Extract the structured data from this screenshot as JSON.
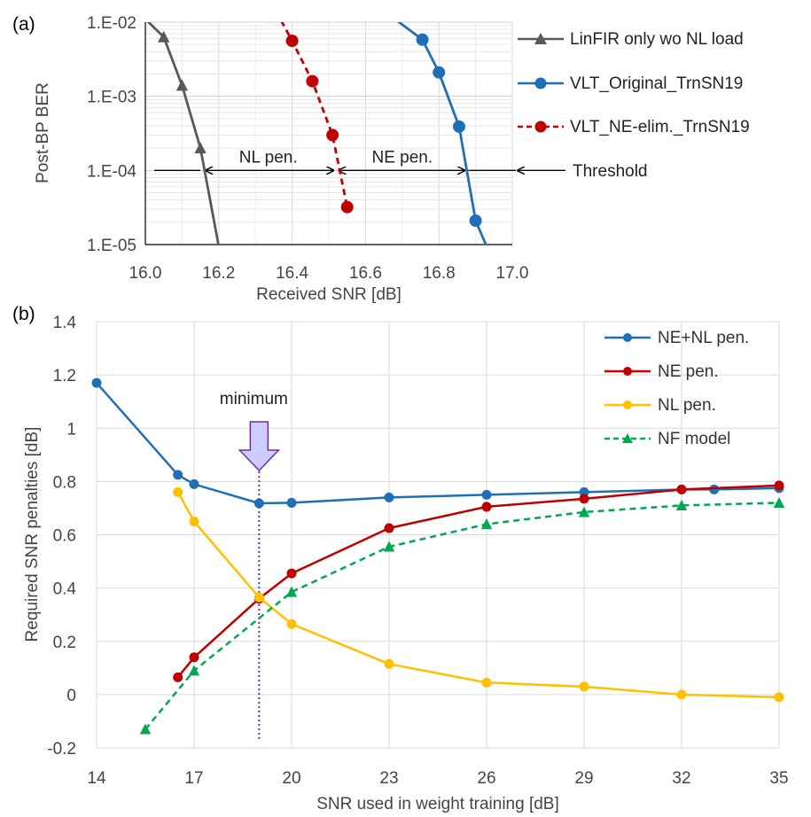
{
  "chart_data": [
    {
      "panel_label": "(a)",
      "type": "line",
      "xlabel": "Received SNR [dB]",
      "ylabel": "Post-BP BER",
      "xlim": [
        16.0,
        17.0
      ],
      "ylim": [
        1e-05,
        0.01
      ],
      "yscale": "log",
      "x_ticks": [
        "16.0",
        "16.2",
        "16.4",
        "16.6",
        "16.8",
        "17.0"
      ],
      "y_ticks": [
        "1.E-02",
        "1.E-03",
        "1.E-04",
        "1.E-05"
      ],
      "grid": true,
      "legend_position": "right",
      "series": [
        {
          "name": "LinFIR only wo NL load",
          "color": "#595959",
          "marker": "triangle",
          "dash": "solid",
          "line_x": [
            16.0,
            16.05,
            16.1,
            16.15,
            16.2
          ],
          "line_y": [
            0.011,
            0.0063,
            0.0014,
            0.0002,
            9.5e-06
          ],
          "x": [
            16.05,
            16.1,
            16.15
          ],
          "y": [
            0.0063,
            0.0014,
            0.0002
          ]
        },
        {
          "name": "VLT_Original_TrnSN19",
          "color": "#1f6fb6",
          "marker": "circle",
          "dash": "solid",
          "line_x": [
            16.68,
            16.755,
            16.8,
            16.855,
            16.9,
            16.93
          ],
          "line_y": [
            0.011,
            0.0058,
            0.0021,
            0.00039,
            2.1e-05,
            9.5e-06
          ],
          "x": [
            16.755,
            16.8,
            16.855,
            16.9
          ],
          "y": [
            0.0058,
            0.0021,
            0.00039,
            2.1e-05
          ]
        },
        {
          "name": "VLT_NE-elim._TrnSN19",
          "color": "#c00000",
          "marker": "circle",
          "dash": "dashed",
          "line_x": [
            16.37,
            16.4,
            16.455,
            16.51,
            16.55
          ],
          "line_y": [
            0.0105,
            0.0056,
            0.0016,
            0.0003,
            3.2e-05
          ],
          "x": [
            16.4,
            16.455,
            16.51,
            16.55
          ],
          "y": [
            0.0056,
            0.0016,
            0.0003,
            3.2e-05
          ]
        }
      ],
      "annotations": {
        "threshold_label": "Threshold",
        "threshold_value": 0.0001,
        "nl_pen_label": "NL pen.",
        "nl_pen_range": [
          16.15,
          16.52
        ],
        "ne_pen_label": "NE pen.",
        "ne_pen_range": [
          16.52,
          16.88
        ]
      }
    },
    {
      "panel_label": "(b)",
      "type": "line",
      "xlabel": "SNR used in weight training [dB]",
      "ylabel": "Required SNR penalties [dB]",
      "xlim": [
        14,
        35
      ],
      "ylim": [
        -0.2,
        1.4
      ],
      "x_ticks": [
        "14",
        "17",
        "20",
        "23",
        "26",
        "29",
        "32",
        "35"
      ],
      "y_ticks": [
        "-0.2",
        "0",
        "0.2",
        "0.4",
        "0.6",
        "0.8",
        "1",
        "1.2",
        "1.4"
      ],
      "grid": true,
      "legend_position": "top-right",
      "series": [
        {
          "name": "NE+NL pen.",
          "color": "#1f6fb6",
          "marker": "circle",
          "dash": "solid",
          "x": [
            14,
            16.5,
            17,
            19,
            20,
            23,
            26,
            29,
            32,
            33,
            35
          ],
          "y": [
            1.17,
            0.825,
            0.79,
            0.718,
            0.72,
            0.74,
            0.75,
            0.76,
            0.77,
            0.77,
            0.775
          ]
        },
        {
          "name": "NE pen.",
          "color": "#c00000",
          "marker": "circle",
          "dash": "solid",
          "x": [
            16.5,
            17,
            19,
            20,
            23,
            26,
            29,
            32,
            35
          ],
          "y": [
            0.065,
            0.14,
            0.36,
            0.455,
            0.625,
            0.705,
            0.735,
            0.77,
            0.785
          ]
        },
        {
          "name": "NL pen.",
          "color": "#ffc000",
          "marker": "circle",
          "dash": "solid",
          "x": [
            16.5,
            17,
            19,
            20,
            23,
            26,
            29,
            32,
            35
          ],
          "y": [
            0.76,
            0.65,
            0.365,
            0.265,
            0.115,
            0.045,
            0.03,
            0.0,
            -0.01
          ]
        },
        {
          "name": "NF model",
          "color": "#00a850",
          "marker": "triangle",
          "dash": "dashed",
          "x": [
            15.5,
            17,
            20,
            23,
            26,
            29,
            32,
            35
          ],
          "y": [
            -0.13,
            0.09,
            0.385,
            0.555,
            0.64,
            0.685,
            0.71,
            0.72
          ]
        }
      ],
      "annotations": {
        "minimum_label": "minimum",
        "minimum_x": 19
      }
    }
  ]
}
